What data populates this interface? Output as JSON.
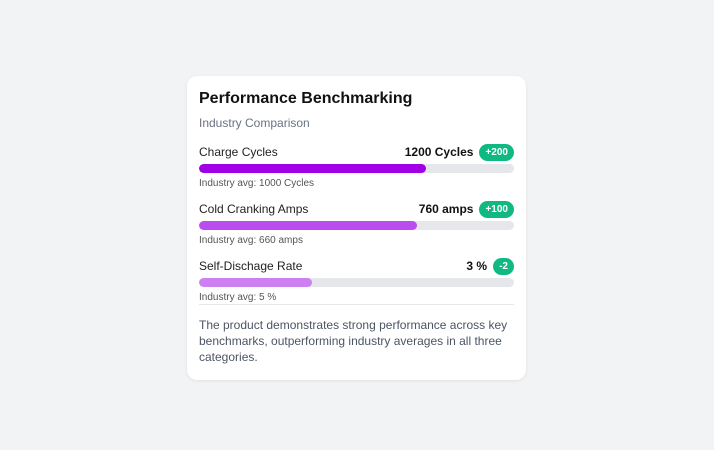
{
  "card": {
    "title": "Performance Benchmarking",
    "subtitle": "Industry Comparison",
    "metrics": [
      {
        "label": "Charge Cycles",
        "value": 1200,
        "value_label": "1200 Cycles",
        "delta": "+200",
        "avg": 1000,
        "avg_label": "Industry avg: 1000 Cycles",
        "color": "#a100e6"
      },
      {
        "label": "Cold Cranking Amps",
        "value": 760,
        "value_label": "760 amps",
        "delta": "+100",
        "avg": 660,
        "avg_label": "Industry avg: 660 amps",
        "color": "#bb4df0"
      },
      {
        "label": "Self-Dischage Rate",
        "value": 3,
        "value_label": "3 %",
        "delta": "-2",
        "avg": 5,
        "avg_label": "Industry avg: 5 %",
        "color": "#cd80f2"
      }
    ],
    "summary": "The product demonstrates strong performance across key benchmarks, outperforming industry averages in all three categories."
  }
}
